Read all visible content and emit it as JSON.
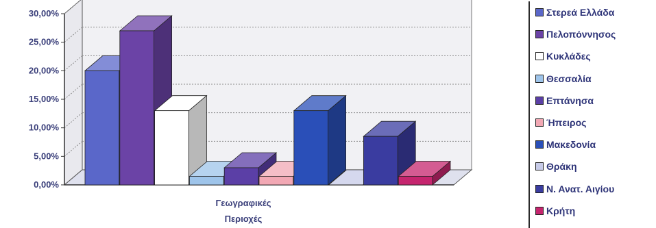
{
  "chart_data": {
    "type": "bar",
    "three_d": true,
    "xlabel": "Γεωγραφικές Περιοχές",
    "xlabel_lines": [
      "Γεωγραφικές",
      "Περιοχές"
    ],
    "ylabel": "",
    "ylim": [
      0,
      30
    ],
    "y_ticks": [
      "0,00%",
      "5,00%",
      "10,00%",
      "15,00%",
      "20,00%",
      "25,00%",
      "30,00%"
    ],
    "grid": true,
    "legend_position": "right",
    "series": [
      {
        "name": "Στερεά Ελλάδα",
        "value": 20.0,
        "color": "#5a67c9"
      },
      {
        "name": "Πελοπόννησος",
        "value": 27.0,
        "color": "#6b43a6"
      },
      {
        "name": "Κυκλάδες",
        "value": 13.0,
        "color": "#ffffff"
      },
      {
        "name": "Θεσσαλία",
        "value": 1.5,
        "color": "#9ec4ea"
      },
      {
        "name": "Επτάνησα",
        "value": 3.0,
        "color": "#5b3fa6"
      },
      {
        "name": "Ήπειρος",
        "value": 1.5,
        "color": "#f2a8b4"
      },
      {
        "name": "Μακεδονία",
        "value": 13.0,
        "color": "#2a4fb8"
      },
      {
        "name": "Θράκη",
        "value": 0.0,
        "color": "#c7cbe8"
      },
      {
        "name": "Ν. Ανατ. Αιγίου",
        "value": 8.5,
        "color": "#3a3ca0"
      },
      {
        "name": "Κρήτη",
        "value": 1.5,
        "color": "#c5256e"
      }
    ]
  }
}
